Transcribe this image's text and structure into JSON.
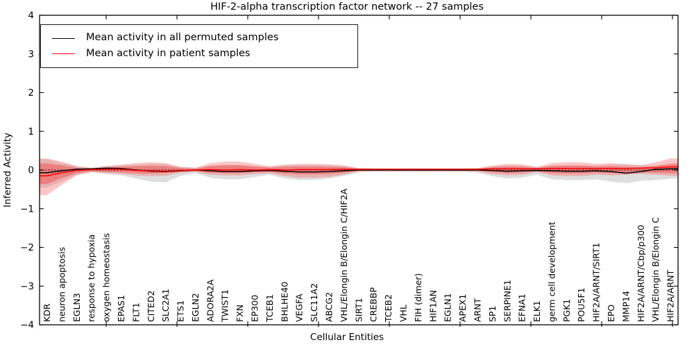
{
  "chart_data": {
    "type": "line",
    "title": "HIF-2-alpha transcription factor network -- 27 samples",
    "xlabel": "Cellular Entities",
    "ylabel": "Inferred Activity",
    "ylim": [
      -4,
      4
    ],
    "ytick_labels": [
      "4",
      "3",
      "2",
      "1",
      "0",
      "−1",
      "−2",
      "−3",
      "−4"
    ],
    "ytick_values": [
      4,
      3,
      2,
      1,
      0,
      -1,
      -2,
      -3,
      -4
    ],
    "grid": false,
    "legend_position": "upper-left",
    "zero_line": 0,
    "categories": [
      "KDR",
      "neuron apoptosis",
      "EGLN3",
      "response to hypoxia",
      "oxygen homeostasis",
      "EPAS1",
      "FLT1",
      "CITED2",
      "SLC2A1",
      "ETS1",
      "EGLN2",
      "ADORA2A",
      "TWIST1",
      "FXN",
      "EP300",
      "TCEB1",
      "BHLHE40",
      "VEGFA",
      "SLC11A2",
      "ABCG2",
      "VHL/Elongin B/Elongin C/HIF2A",
      "SIRT1",
      "CREBBP",
      "TCEB2",
      "VHL",
      "FIH (dimer)",
      "HIF1AN",
      "EGLN1",
      "APEX1",
      "ARNT",
      "SP1",
      "SERPINE1",
      "EFNA1",
      "ELK1",
      "germ cell development",
      "PGK1",
      "POU5F1",
      "HIF2A/ARNT/SIRT1",
      "EPO",
      "MMP14",
      "HIF2A/ARNT/Cbp/p300",
      "VHL/Elongin B/Elongin C",
      "HIF2A/ARNT"
    ],
    "series": [
      {
        "name": "Mean activity in all permuted samples",
        "color": "#000000",
        "values": [
          -0.07,
          -0.02,
          0.02,
          0.03,
          0.05,
          0.04,
          0.0,
          -0.03,
          -0.04,
          -0.02,
          0.0,
          -0.02,
          -0.04,
          -0.04,
          -0.02,
          -0.01,
          -0.03,
          -0.05,
          -0.05,
          -0.04,
          -0.02,
          0.0,
          0.0,
          0.0,
          0.0,
          0.0,
          0.0,
          0.0,
          0.0,
          0.0,
          -0.01,
          -0.03,
          -0.02,
          -0.01,
          -0.02,
          -0.03,
          -0.03,
          -0.02,
          -0.04,
          -0.08,
          -0.04,
          0.02,
          0.03
        ]
      },
      {
        "name": "Mean activity in patient samples",
        "color": "#ff0000",
        "values": [
          -0.15,
          -0.07,
          -0.01,
          0.01,
          0.02,
          0.02,
          -0.01,
          -0.02,
          -0.03,
          -0.01,
          0.0,
          0.01,
          0.0,
          0.01,
          0.0,
          0.01,
          0.0,
          0.01,
          0.01,
          0.01,
          0.02,
          0.02,
          0.02,
          0.02,
          0.02,
          0.02,
          0.02,
          0.02,
          0.02,
          0.02,
          0.03,
          0.03,
          0.03,
          0.03,
          0.04,
          0.04,
          0.04,
          0.04,
          0.04,
          0.04,
          0.05,
          0.06,
          0.08
        ]
      }
    ],
    "bands": [
      {
        "name": "permuted-samples-range",
        "color": "#bdbdbd",
        "opacity": 0.5,
        "upper": [
          0.28,
          0.18,
          0.1,
          0.06,
          0.1,
          0.12,
          0.14,
          0.16,
          0.15,
          0.08,
          0.06,
          0.12,
          0.14,
          0.13,
          0.1,
          0.08,
          0.12,
          0.13,
          0.13,
          0.12,
          0.1,
          0.05,
          0.04,
          0.04,
          0.04,
          0.04,
          0.04,
          0.04,
          0.04,
          0.05,
          0.09,
          0.12,
          0.11,
          0.08,
          0.12,
          0.13,
          0.13,
          0.12,
          0.14,
          0.16,
          0.13,
          0.1,
          0.12
        ],
        "lower": [
          -0.45,
          -0.3,
          -0.12,
          -0.06,
          -0.1,
          -0.14,
          -0.22,
          -0.3,
          -0.32,
          -0.15,
          -0.08,
          -0.2,
          -0.24,
          -0.24,
          -0.18,
          -0.12,
          -0.22,
          -0.26,
          -0.26,
          -0.22,
          -0.15,
          -0.06,
          -0.05,
          -0.05,
          -0.05,
          -0.05,
          -0.05,
          -0.05,
          -0.05,
          -0.07,
          -0.16,
          -0.22,
          -0.2,
          -0.12,
          -0.24,
          -0.26,
          -0.26,
          -0.24,
          -0.3,
          -0.34,
          -0.28,
          -0.26,
          -0.22
        ]
      },
      {
        "name": "patient-samples-range-outer",
        "color": "#f96a6a",
        "opacity": 0.38,
        "upper": [
          0.3,
          0.22,
          0.1,
          0.05,
          0.1,
          0.14,
          0.18,
          0.2,
          0.18,
          0.08,
          0.06,
          0.18,
          0.22,
          0.22,
          0.16,
          0.1,
          0.14,
          0.16,
          0.16,
          0.15,
          0.12,
          0.05,
          0.04,
          0.04,
          0.04,
          0.04,
          0.04,
          0.04,
          0.04,
          0.05,
          0.12,
          0.16,
          0.15,
          0.08,
          0.18,
          0.2,
          0.2,
          0.16,
          0.18,
          0.14,
          0.12,
          0.2,
          0.3
        ],
        "lower": [
          -0.65,
          -0.38,
          -0.14,
          -0.05,
          -0.08,
          -0.1,
          -0.14,
          -0.16,
          -0.15,
          -0.07,
          -0.05,
          -0.12,
          -0.14,
          -0.14,
          -0.1,
          -0.08,
          -0.16,
          -0.2,
          -0.2,
          -0.18,
          -0.12,
          -0.04,
          -0.03,
          -0.03,
          -0.03,
          -0.03,
          -0.03,
          -0.03,
          -0.03,
          -0.04,
          -0.1,
          -0.14,
          -0.12,
          -0.06,
          -0.14,
          -0.16,
          -0.16,
          -0.12,
          -0.14,
          -0.12,
          -0.1,
          -0.12,
          -0.15
        ]
      },
      {
        "name": "patient-samples-range-inner",
        "color": "#f23535",
        "opacity": 0.4,
        "upper": [
          0.17,
          0.12,
          0.06,
          0.03,
          0.06,
          0.08,
          0.1,
          0.11,
          0.1,
          0.05,
          0.03,
          0.1,
          0.12,
          0.12,
          0.09,
          0.06,
          0.08,
          0.09,
          0.09,
          0.08,
          0.07,
          0.03,
          0.02,
          0.02,
          0.02,
          0.02,
          0.02,
          0.02,
          0.02,
          0.03,
          0.07,
          0.09,
          0.08,
          0.05,
          0.1,
          0.11,
          0.11,
          0.09,
          0.1,
          0.08,
          0.07,
          0.11,
          0.17
        ],
        "lower": [
          -0.36,
          -0.21,
          -0.08,
          -0.03,
          -0.05,
          -0.06,
          -0.08,
          -0.09,
          -0.08,
          -0.04,
          -0.03,
          -0.07,
          -0.08,
          -0.08,
          -0.06,
          -0.05,
          -0.09,
          -0.11,
          -0.11,
          -0.1,
          -0.07,
          -0.02,
          -0.02,
          -0.02,
          -0.02,
          -0.02,
          -0.02,
          -0.02,
          -0.02,
          -0.02,
          -0.06,
          -0.08,
          -0.07,
          -0.03,
          -0.08,
          -0.09,
          -0.09,
          -0.07,
          -0.08,
          -0.07,
          -0.06,
          -0.07,
          -0.08
        ]
      }
    ]
  }
}
